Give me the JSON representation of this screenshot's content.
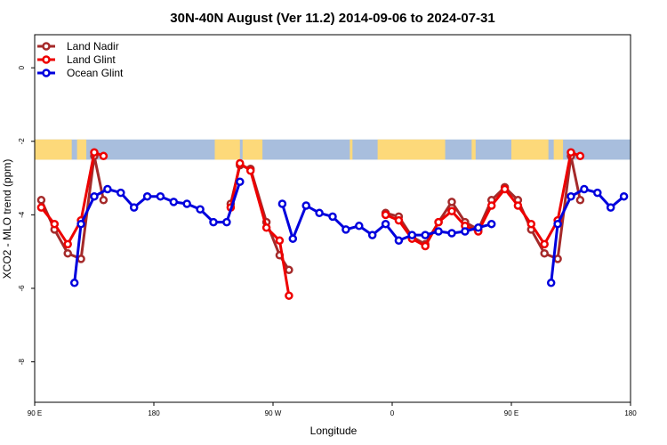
{
  "chart_data": {
    "type": "line",
    "title": "30N-40N August (Ver 11.2)   2014-09-06 to 2024-07-31",
    "xlabel": "Longitude",
    "ylabel": "XCO2 - MLO trend (ppm)",
    "x_axis": {
      "description": "unwrapped longitude in degrees from 90 E eastward through 180 to 180 (540)",
      "range": [
        90,
        540
      ],
      "ticks": [
        {
          "value": 90,
          "label": "90 E"
        },
        {
          "value": 180,
          "label": "180"
        },
        {
          "value": 270,
          "label": "90 W"
        },
        {
          "value": 360,
          "label": "0"
        },
        {
          "value": 450,
          "label": "90 E"
        },
        {
          "value": 540,
          "label": "180"
        }
      ]
    },
    "y_axis": {
      "range": [
        -9.1,
        0.9
      ],
      "ticks": [
        {
          "value": 0,
          "label": "0"
        },
        {
          "value": -2,
          "label": "-2"
        },
        {
          "value": -4,
          "label": "-4"
        },
        {
          "value": -6,
          "label": "-6"
        },
        {
          "value": -8,
          "label": "-8"
        }
      ]
    },
    "map_strip": {
      "y_top": -1.95,
      "y_bottom": -2.5,
      "ocean_color": "#a8bedd",
      "land_color": "#fdd97a"
    },
    "legend_placement": "top-left",
    "series": [
      {
        "name": "Land Nadir",
        "color": "#a52a2a",
        "segments": [
          [
            [
              95,
              -3.6
            ],
            [
              105,
              -4.4
            ],
            [
              115,
              -5.05
            ],
            [
              125,
              -5.2
            ],
            [
              135,
              -2.4
            ],
            [
              142,
              -3.6
            ]
          ],
          [
            [
              238,
              -3.7
            ],
            [
              245,
              -2.65
            ],
            [
              253,
              -2.75
            ],
            [
              265,
              -4.2
            ],
            [
              275,
              -5.1
            ],
            [
              282,
              -5.5
            ]
          ],
          [
            [
              355,
              -3.95
            ],
            [
              365,
              -4.05
            ],
            [
              375,
              -4.6
            ],
            [
              385,
              -4.8
            ],
            [
              395,
              -4.2
            ],
            [
              405,
              -3.65
            ],
            [
              415,
              -4.2
            ],
            [
              425,
              -4.4
            ],
            [
              435,
              -3.6
            ],
            [
              445,
              -3.25
            ],
            [
              455,
              -3.6
            ],
            [
              465,
              -4.4
            ],
            [
              475,
              -5.05
            ],
            [
              485,
              -5.2
            ],
            [
              495,
              -2.4
            ],
            [
              502,
              -3.6
            ]
          ]
        ]
      },
      {
        "name": "Land Glint",
        "color": "#ee0000",
        "segments": [
          [
            [
              95,
              -3.8
            ],
            [
              105,
              -4.25
            ],
            [
              115,
              -4.8
            ],
            [
              125,
              -4.15
            ],
            [
              135,
              -2.3
            ],
            [
              142,
              -2.4
            ]
          ],
          [
            [
              238,
              -3.8
            ],
            [
              245,
              -2.6
            ],
            [
              253,
              -2.8
            ],
            [
              265,
              -4.35
            ],
            [
              275,
              -4.7
            ],
            [
              282,
              -6.2
            ]
          ],
          [
            [
              355,
              -4.0
            ],
            [
              365,
              -4.15
            ],
            [
              375,
              -4.65
            ],
            [
              385,
              -4.85
            ],
            [
              395,
              -4.2
            ],
            [
              405,
              -3.9
            ],
            [
              415,
              -4.3
            ],
            [
              425,
              -4.45
            ],
            [
              435,
              -3.75
            ],
            [
              445,
              -3.3
            ],
            [
              455,
              -3.75
            ],
            [
              465,
              -4.25
            ],
            [
              475,
              -4.8
            ],
            [
              485,
              -4.15
            ],
            [
              495,
              -2.3
            ],
            [
              502,
              -2.4
            ]
          ]
        ]
      },
      {
        "name": "Ocean Glint",
        "color": "#0000dd",
        "segments": [
          [
            [
              120,
              -5.85
            ],
            [
              125,
              -4.25
            ],
            [
              135,
              -3.5
            ],
            [
              145,
              -3.3
            ],
            [
              155,
              -3.4
            ],
            [
              165,
              -3.8
            ],
            [
              175,
              -3.5
            ],
            [
              185,
              -3.5
            ],
            [
              195,
              -3.65
            ],
            [
              205,
              -3.7
            ],
            [
              215,
              -3.85
            ],
            [
              225,
              -4.2
            ],
            [
              235,
              -4.2
            ],
            [
              245,
              -3.1
            ]
          ],
          [
            [
              277,
              -3.7
            ],
            [
              285,
              -4.65
            ],
            [
              295,
              -3.75
            ],
            [
              305,
              -3.95
            ],
            [
              315,
              -4.05
            ],
            [
              325,
              -4.4
            ],
            [
              335,
              -4.3
            ],
            [
              345,
              -4.55
            ],
            [
              355,
              -4.25
            ],
            [
              365,
              -4.7
            ],
            [
              375,
              -4.55
            ],
            [
              385,
              -4.55
            ],
            [
              395,
              -4.45
            ],
            [
              405,
              -4.5
            ],
            [
              415,
              -4.45
            ],
            [
              425,
              -4.35
            ],
            [
              435,
              -4.25
            ]
          ],
          [
            [
              480,
              -5.85
            ],
            [
              485,
              -4.25
            ],
            [
              495,
              -3.5
            ],
            [
              505,
              -3.3
            ],
            [
              515,
              -3.4
            ],
            [
              525,
              -3.8
            ],
            [
              535,
              -3.5
            ]
          ]
        ]
      }
    ]
  }
}
